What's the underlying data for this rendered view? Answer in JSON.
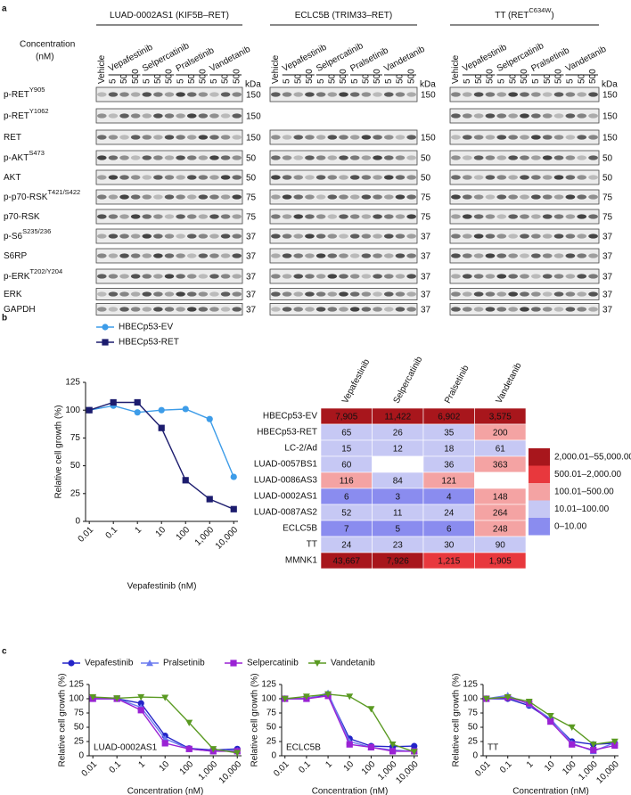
{
  "panel_labels": [
    "a",
    "b",
    "c"
  ],
  "panel_a": {
    "groups": [
      {
        "title": "LUAD-0002AS1 (KIF5B–RET)",
        "markers": [
          150,
          150,
          150,
          50,
          50,
          75,
          75,
          37,
          37,
          37,
          37,
          37
        ]
      },
      {
        "title": "ECLC5B (TRIM33–RET)",
        "markers": [
          150,
          null,
          150,
          50,
          50,
          75,
          75,
          37,
          37,
          37,
          37,
          37
        ]
      },
      {
        "title": "TT (RET",
        "title_sup": "C634W",
        "title_end": ")",
        "markers": [
          150,
          150,
          150,
          50,
          50,
          75,
          75,
          37,
          37,
          37,
          37,
          37
        ]
      }
    ],
    "concentration_label": [
      "Concentration",
      "(nM)"
    ],
    "drugs": [
      "Vepafestinib",
      "Selpercatinib",
      "Pralsetinib",
      "Vandetanib"
    ],
    "vehicle": "Vehicle",
    "doses": [
      "5",
      "50",
      "500"
    ],
    "kda": "kDa",
    "rows": [
      {
        "name": "p-RET",
        "sup": "Y905"
      },
      {
        "name": "p-RET",
        "sup": "Y1062"
      },
      {
        "name": "RET"
      },
      {
        "name": "p-AKT",
        "sup": "S473"
      },
      {
        "name": "AKT"
      },
      {
        "name": "p-p70-RSK",
        "sup": "T421/S422"
      },
      {
        "name": "p70-RSK"
      },
      {
        "name": "p-S6",
        "sup": "S235/236"
      },
      {
        "name": "S6RP"
      },
      {
        "name": "p-ERK",
        "sup": "T202/Y204"
      },
      {
        "name": "ERK"
      },
      {
        "name": "GAPDH"
      }
    ]
  },
  "heatmap": {
    "columns": [
      "Vepafestinib",
      "Selpercatinib",
      "Pralsetinib",
      "Vandetanib"
    ],
    "rows": [
      {
        "name": "HBECp53-EV",
        "values": [
          7905,
          11422,
          6902,
          3575
        ],
        "value_labels": [
          "7,905",
          "11,422",
          "6,902",
          "3,575"
        ]
      },
      {
        "name": "HBECp53-RET",
        "values": [
          65,
          26,
          35,
          200
        ]
      },
      {
        "name": "LC-2/Ad",
        "values": [
          15,
          12,
          18,
          61
        ]
      },
      {
        "name": "LUAD-0057BS1",
        "values": [
          60,
          null,
          36,
          363
        ]
      },
      {
        "name": "LUAD-0086AS3",
        "values": [
          116,
          84,
          121,
          null
        ]
      },
      {
        "name": "LUAD-0002AS1",
        "values": [
          6,
          3,
          4,
          148
        ]
      },
      {
        "name": "LUAD-0087AS2",
        "values": [
          52,
          11,
          24,
          264
        ]
      },
      {
        "name": "ECLC5B",
        "values": [
          7,
          5,
          6,
          248
        ]
      },
      {
        "name": "TT",
        "values": [
          24,
          23,
          30,
          90
        ]
      },
      {
        "name": "MMNK1",
        "values": [
          43667,
          7926,
          1215,
          1905
        ],
        "value_labels": [
          "43,667",
          "7,926",
          "1,215",
          "1,905"
        ]
      }
    ],
    "legend": [
      {
        "label": "2,000.01–55,000.00",
        "color": "#a8161c"
      },
      {
        "label": "500.01–2,000.00",
        "color": "#e8383d"
      },
      {
        "label": "100.01–500.00",
        "color": "#f4a3a3"
      },
      {
        "label": "10.01–100.00",
        "color": "#c6c8f4"
      },
      {
        "label": "0–10.00",
        "color": "#8a8cef"
      }
    ]
  },
  "chart_data": [
    {
      "type": "line",
      "xlabel": "Vepafestinib (nM)",
      "ylabel": "Relative cell growth (%)",
      "xscale": "log",
      "legend": "top-left",
      "x": [
        0.01,
        0.1,
        1,
        10,
        100,
        1000,
        10000
      ],
      "series": [
        {
          "name": "HBECp53-EV",
          "color": "#3d9ce8",
          "marker": "circle",
          "values": [
            100,
            104,
            98,
            100,
            101,
            92,
            40
          ]
        },
        {
          "name": "HBECp53-RET",
          "color": "#1c1c6e",
          "marker": "square",
          "values": [
            100,
            107,
            107,
            84,
            37,
            20,
            11
          ]
        }
      ],
      "xlim": [
        0.007,
        15000
      ],
      "xticks": [
        0.01,
        0.1,
        1,
        10,
        100,
        {
          "value": 1000,
          "label": "1,000"
        },
        {
          "value": 10000,
          "label": "10,000"
        }
      ],
      "ylim": [
        0,
        125
      ],
      "yticks": [
        0,
        25,
        50,
        75,
        100,
        125
      ]
    },
    {
      "type": "line",
      "xlabel": "Concentration (nM)",
      "ylabel": "Relative cell growth (%)",
      "xscale": "log",
      "annotation": "LUAD-0002AS1",
      "legend": "top",
      "x": [
        0.01,
        0.1,
        1,
        10,
        100,
        1000,
        10000
      ],
      "series": [
        {
          "name": "Vepafestinib",
          "color": "#2424c8",
          "marker": "circle",
          "values": [
            100,
            100,
            92,
            35,
            13,
            10,
            12
          ]
        },
        {
          "name": "Pralsetinib",
          "color": "#6b7bef",
          "marker": "triangle",
          "values": [
            100,
            100,
            85,
            30,
            12,
            8,
            9
          ]
        },
        {
          "name": "Selpercatinib",
          "color": "#9a22d4",
          "marker": "square",
          "values": [
            100,
            100,
            80,
            22,
            12,
            8,
            8
          ]
        },
        {
          "name": "Vandetanib",
          "color": "#5a9a22",
          "marker": "triangle-down",
          "values": [
            103,
            101,
            103,
            102,
            58,
            12,
            5
          ]
        }
      ],
      "xlim": [
        0.007,
        15000
      ],
      "xticks": [
        0.01,
        0.1,
        1,
        10,
        100,
        {
          "value": 1000,
          "label": "1,000"
        },
        {
          "value": 10000,
          "label": "10,000"
        }
      ],
      "ylim": [
        0,
        125
      ],
      "yticks": [
        0,
        25,
        50,
        75,
        100,
        125
      ]
    },
    {
      "type": "line",
      "xlabel": "Concentration (nM)",
      "ylabel": "Relative cell growth (%)",
      "xscale": "log",
      "annotation": "ECLC5B",
      "x": [
        0.01,
        0.1,
        1,
        10,
        100,
        1000,
        10000
      ],
      "series": [
        {
          "color": "#2424c8",
          "marker": "circle",
          "values": [
            100,
            100,
            108,
            30,
            17,
            16,
            17
          ]
        },
        {
          "color": "#6b7bef",
          "marker": "triangle",
          "values": [
            100,
            100,
            110,
            25,
            15,
            10,
            8
          ]
        },
        {
          "color": "#9a22d4",
          "marker": "square",
          "values": [
            100,
            100,
            105,
            20,
            15,
            8,
            8
          ]
        },
        {
          "color": "#5a9a22",
          "marker": "triangle-down",
          "values": [
            100,
            104,
            108,
            104,
            82,
            20,
            7
          ]
        }
      ],
      "xlim": [
        0.007,
        15000
      ],
      "xticks": [
        0.01,
        0.1,
        1,
        10,
        100,
        {
          "value": 1000,
          "label": "1,000"
        },
        {
          "value": 10000,
          "label": "10,000"
        }
      ],
      "ylim": [
        0,
        125
      ],
      "yticks": [
        0,
        25,
        50,
        75,
        100,
        125
      ]
    },
    {
      "type": "line",
      "xlabel": "Concentration (nM)",
      "ylabel": "Relative cell growth (%)",
      "xscale": "log",
      "annotation": "TT",
      "x": [
        0.01,
        0.1,
        1,
        10,
        100,
        1000,
        10000
      ],
      "series": [
        {
          "color": "#2424c8",
          "marker": "circle",
          "values": [
            100,
            100,
            88,
            63,
            25,
            20,
            22
          ]
        },
        {
          "color": "#6b7bef",
          "marker": "triangle",
          "values": [
            100,
            106,
            90,
            65,
            22,
            8,
            23
          ]
        },
        {
          "color": "#9a22d4",
          "marker": "square",
          "values": [
            100,
            102,
            92,
            60,
            20,
            10,
            18
          ]
        },
        {
          "color": "#5a9a22",
          "marker": "triangle-down",
          "values": [
            100,
            103,
            95,
            70,
            50,
            20,
            25
          ]
        }
      ],
      "xlim": [
        0.007,
        15000
      ],
      "xticks": [
        0.01,
        0.1,
        1,
        10,
        100,
        {
          "value": 1000,
          "label": "1,000"
        },
        {
          "value": 10000,
          "label": "10,000"
        }
      ],
      "ylim": [
        0,
        125
      ],
      "yticks": [
        0,
        25,
        50,
        75,
        100,
        125
      ]
    }
  ]
}
